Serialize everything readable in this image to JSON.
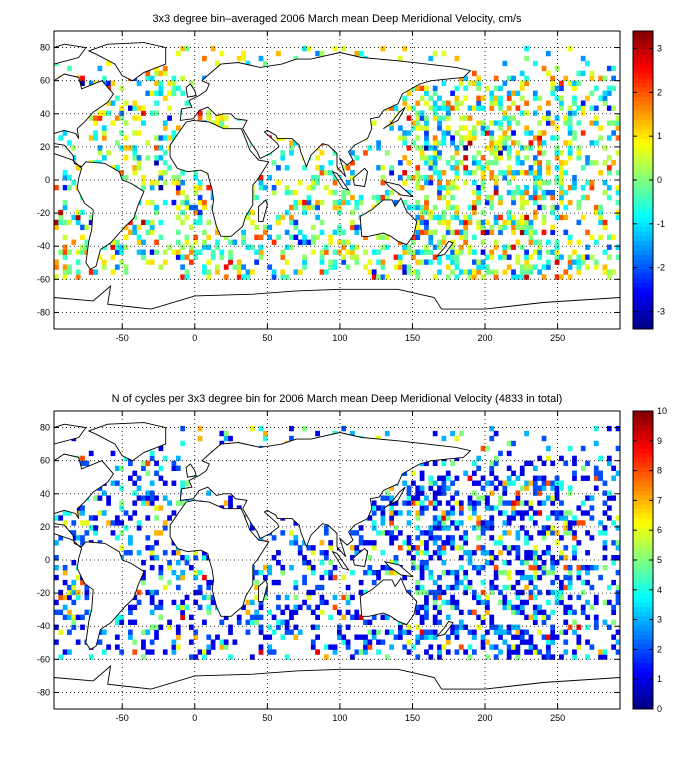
{
  "chart_data": [
    {
      "type": "heatmap",
      "title": "3x3 degree bin–averaged 2006 March mean Deep Meridional Velocity, cm/s",
      "xlim": [
        -97,
        293
      ],
      "ylim": [
        -90,
        90
      ],
      "x_ticks": [
        -50,
        0,
        50,
        100,
        150,
        200,
        250
      ],
      "y_ticks": [
        -80,
        -60,
        -40,
        -20,
        0,
        20,
        40,
        60,
        80
      ],
      "grid": true,
      "bin_size_deg": 3,
      "colorbar": {
        "position": "right",
        "range": [
          -3.4,
          3.4
        ],
        "ticks": [
          -3,
          -2,
          -1,
          0,
          1,
          2,
          3
        ],
        "colormap": "jet"
      }
    },
    {
      "type": "heatmap",
      "title": "N of cycles per 3x3 degree bin for 2006 March mean Deep Meridional Velocity (4833 in total)",
      "xlim": [
        -97,
        293
      ],
      "ylim": [
        -90,
        90
      ],
      "x_ticks": [
        -50,
        0,
        50,
        100,
        150,
        200,
        250
      ],
      "y_ticks": [
        -80,
        -60,
        -40,
        -20,
        0,
        20,
        40,
        60,
        80
      ],
      "grid": true,
      "bin_size_deg": 3,
      "total_cycles": 4833,
      "colorbar": {
        "position": "right",
        "range": [
          0,
          10
        ],
        "ticks": [
          0,
          1,
          2,
          3,
          4,
          5,
          6,
          7,
          8,
          9,
          10
        ],
        "colormap": "jet"
      }
    }
  ]
}
